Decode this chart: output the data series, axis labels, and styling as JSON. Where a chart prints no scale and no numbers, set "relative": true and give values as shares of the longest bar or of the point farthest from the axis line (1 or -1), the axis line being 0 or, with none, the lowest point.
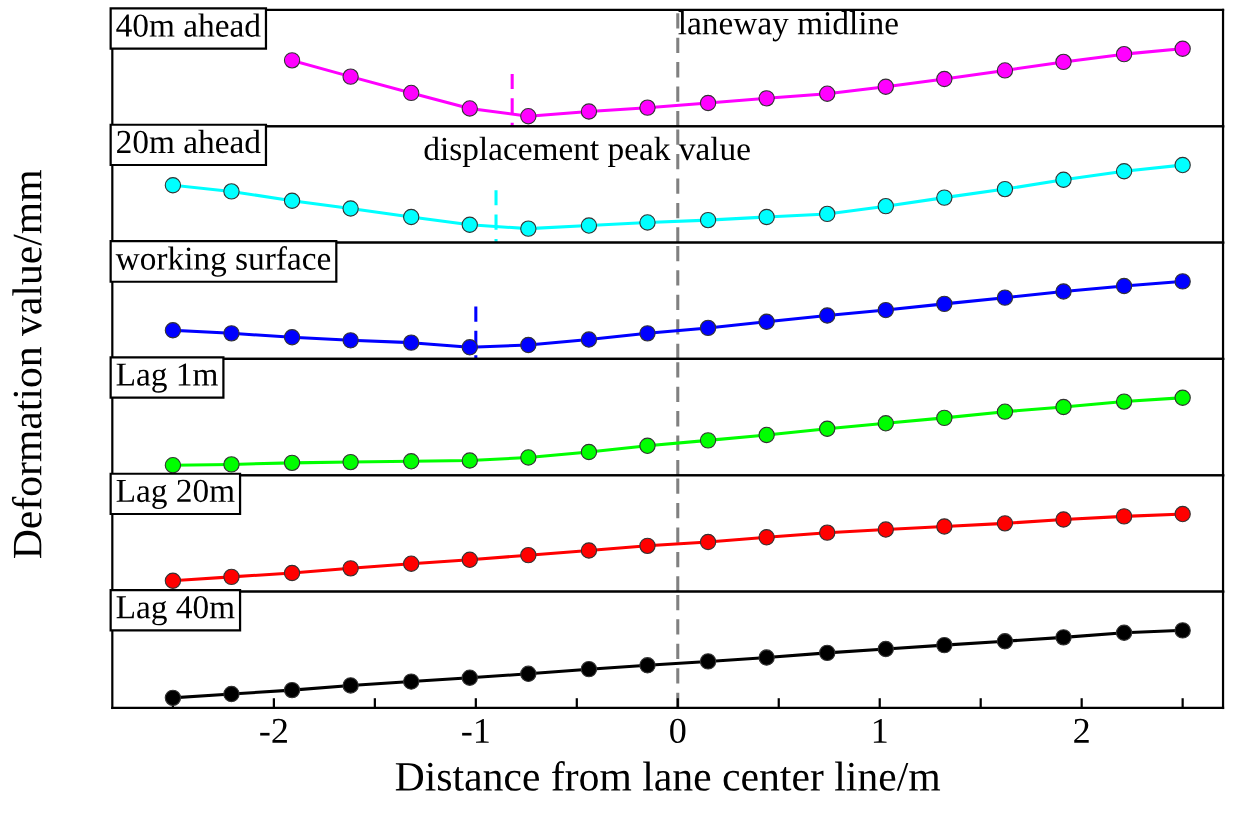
{
  "chart_data": [
    {
      "type": "line",
      "title": "40m ahead",
      "relative": true,
      "marker": "circle",
      "tick_labels": false,
      "xlim": [
        -2.8,
        2.7
      ],
      "series": [
        {
          "color": "#ff00ff",
          "x": [
            -1.91,
            -1.62,
            -1.32,
            -1.03,
            -0.74,
            -0.44,
            -0.15,
            0.15,
            0.44,
            0.74,
            1.03,
            1.32,
            1.62,
            1.91,
            2.21,
            2.5
          ],
          "values": [
            0.85,
            0.64,
            0.43,
            0.23,
            0.13,
            0.19,
            0.24,
            0.3,
            0.36,
            0.42,
            0.51,
            0.61,
            0.72,
            0.83,
            0.93,
            1
          ]
        }
      ],
      "ref_lines": [
        {
          "axis": "x",
          "value": 0,
          "label": "laneway midline",
          "color": "#808080",
          "line_style": "dashed"
        },
        {
          "axis": "x",
          "value": -0.82,
          "color": "#ff00ff",
          "line_style": "dashed"
        }
      ]
    },
    {
      "type": "line",
      "title": "20m ahead",
      "relative": true,
      "marker": "circle",
      "tick_labels": false,
      "xlim": [
        -2.8,
        2.7
      ],
      "x": [
        -2.5,
        -2.21,
        -1.91,
        -1.62,
        -1.32,
        -1.03,
        -0.74,
        -0.44,
        -0.15,
        0.15,
        0.44,
        0.74,
        1.03,
        1.32,
        1.62,
        1.91,
        2.21,
        2.5
      ],
      "series": [
        {
          "color": "#00ffff",
          "values": [
            0.74,
            0.66,
            0.54,
            0.44,
            0.33,
            0.23,
            0.18,
            0.22,
            0.26,
            0.29,
            0.33,
            0.37,
            0.47,
            0.58,
            0.69,
            0.81,
            0.92,
            1
          ]
        }
      ],
      "annotations": [
        "displacement peak value"
      ],
      "ref_lines": [
        {
          "axis": "x",
          "value": 0,
          "color": "#808080",
          "line_style": "dashed"
        },
        {
          "axis": "x",
          "value": -0.9,
          "color": "#00ffff",
          "line_style": "dashed"
        }
      ]
    },
    {
      "type": "line",
      "title": "working surface",
      "ylabel": "Deformation value/mm",
      "relative": true,
      "marker": "circle",
      "tick_labels": false,
      "xlim": [
        -2.8,
        2.7
      ],
      "x": [
        -2.5,
        -2.21,
        -1.91,
        -1.62,
        -1.32,
        -1.03,
        -0.74,
        -0.44,
        -0.15,
        0.15,
        0.44,
        0.74,
        1.03,
        1.32,
        1.62,
        1.91,
        2.21,
        2.5
      ],
      "series": [
        {
          "color": "#0000ff",
          "values": [
            0.37,
            0.33,
            0.28,
            0.24,
            0.21,
            0.15,
            0.18,
            0.25,
            0.33,
            0.4,
            0.48,
            0.56,
            0.63,
            0.71,
            0.79,
            0.87,
            0.94,
            1
          ]
        }
      ],
      "ref_lines": [
        {
          "axis": "x",
          "value": 0,
          "color": "#808080",
          "line_style": "dashed"
        },
        {
          "axis": "x",
          "value": -1.0,
          "color": "#0000ff",
          "line_style": "dashed"
        }
      ]
    },
    {
      "type": "line",
      "title": "Lag 1m",
      "relative": true,
      "marker": "circle",
      "tick_labels": false,
      "xlim": [
        -2.8,
        2.7
      ],
      "x": [
        -2.5,
        -2.21,
        -1.91,
        -1.62,
        -1.32,
        -1.03,
        -0.74,
        -0.44,
        -0.15,
        0.15,
        0.44,
        0.74,
        1.03,
        1.32,
        1.62,
        1.91,
        2.21,
        2.5
      ],
      "series": [
        {
          "color": "#00ff00",
          "values": [
            0.13,
            0.14,
            0.16,
            0.17,
            0.18,
            0.19,
            0.23,
            0.3,
            0.38,
            0.45,
            0.52,
            0.6,
            0.67,
            0.74,
            0.82,
            0.88,
            0.95,
            1
          ]
        }
      ],
      "ref_lines": [
        {
          "axis": "x",
          "value": 0,
          "color": "#808080",
          "line_style": "dashed"
        }
      ]
    },
    {
      "type": "line",
      "title": "Lag 20m",
      "relative": true,
      "marker": "circle",
      "tick_labels": false,
      "xlim": [
        -2.8,
        2.7
      ],
      "x": [
        -2.5,
        -2.21,
        -1.91,
        -1.62,
        -1.32,
        -1.03,
        -0.74,
        -0.44,
        -0.15,
        0.15,
        0.44,
        0.74,
        1.03,
        1.32,
        1.62,
        1.91,
        2.21,
        2.5
      ],
      "series": [
        {
          "color": "#ff0000",
          "values": [
            0.14,
            0.19,
            0.24,
            0.3,
            0.36,
            0.41,
            0.47,
            0.53,
            0.59,
            0.64,
            0.7,
            0.76,
            0.8,
            0.84,
            0.88,
            0.93,
            0.97,
            1
          ]
        }
      ],
      "ref_lines": [
        {
          "axis": "x",
          "value": 0,
          "color": "#808080",
          "line_style": "dashed"
        }
      ]
    },
    {
      "type": "line",
      "title": "Lag 40m",
      "xlabel": "Distance from lane center line/m",
      "relative": true,
      "marker": "circle",
      "tick_labels": "x",
      "xlim": [
        -2.8,
        2.7
      ],
      "xticks": [
        {
          "value": -2.5,
          "label": null
        },
        -2,
        {
          "value": -1.5,
          "label": null
        },
        -1,
        {
          "value": -0.5,
          "label": null
        },
        0,
        {
          "value": 0.5,
          "label": null
        },
        1,
        {
          "value": 1.5,
          "label": null
        },
        2,
        {
          "value": 2.5,
          "label": null
        }
      ],
      "x": [
        -2.5,
        -2.21,
        -1.91,
        -1.62,
        -1.32,
        -1.03,
        -0.74,
        -0.44,
        -0.15,
        0.15,
        0.44,
        0.74,
        1.03,
        1.32,
        1.62,
        1.91,
        2.21,
        2.5
      ],
      "series": [
        {
          "color": "#000000",
          "values": [
            0.13,
            0.18,
            0.23,
            0.29,
            0.34,
            0.39,
            0.44,
            0.5,
            0.55,
            0.6,
            0.65,
            0.71,
            0.76,
            0.81,
            0.86,
            0.91,
            0.97,
            1
          ]
        }
      ],
      "ref_lines": [
        {
          "axis": "x",
          "value": 0,
          "color": "#808080",
          "line_style": "dashed"
        }
      ]
    }
  ]
}
